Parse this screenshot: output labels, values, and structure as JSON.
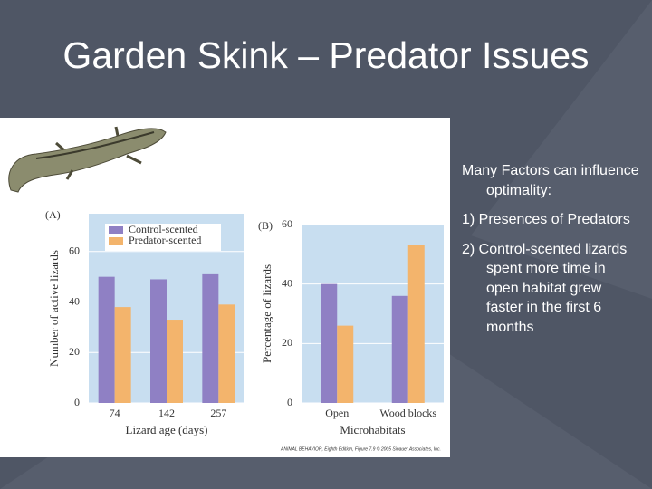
{
  "slide": {
    "title": "Garden Skink – Predator Issues",
    "bullets": [
      "Many Factors can influence optimality:",
      "1) Presences of Predators",
      "2) Control-scented lizards spent more time in open habitat grew faster in the first 6 months"
    ],
    "credit": "ANIMAL BEHAVIOR, Eighth Edition, Figure 7.9 © 2005 Sinauer Associates, Inc."
  },
  "chart_data": [
    {
      "type": "bar",
      "panel": "(A)",
      "xlabel": "Lizard age (days)",
      "ylabel": "Number of active lizards",
      "categories": [
        "74",
        "142",
        "257"
      ],
      "series": [
        {
          "name": "Control-scented",
          "color": "#8f80c4",
          "values": [
            50,
            49,
            51
          ]
        },
        {
          "name": "Predator-scented",
          "color": "#f3b46c",
          "values": [
            38,
            33,
            39
          ]
        }
      ],
      "ylim": [
        0,
        75
      ],
      "yticks": [
        0,
        20,
        40,
        60
      ],
      "legend": "upper left"
    },
    {
      "type": "bar",
      "panel": "(B)",
      "xlabel": "Microhabitats",
      "ylabel": "Percentage of lizards",
      "categories": [
        "Open",
        "Wood blocks"
      ],
      "series": [
        {
          "color": "#8f80c4",
          "values": [
            40,
            36
          ]
        },
        {
          "color": "#f3b46c",
          "values": [
            26,
            53
          ]
        }
      ],
      "ylim": [
        0,
        60
      ],
      "yticks": [
        0,
        20,
        40,
        60
      ]
    }
  ]
}
